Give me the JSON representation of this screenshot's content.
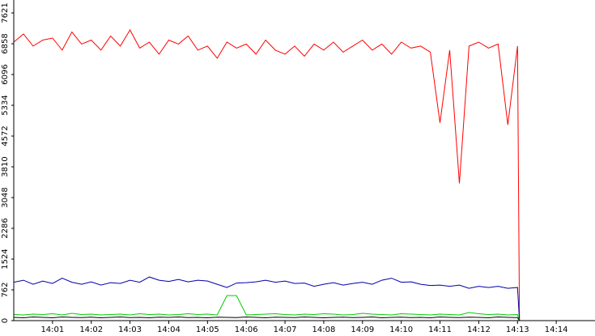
{
  "chart_data": {
    "type": "line",
    "x": [
      0,
      0.25,
      0.5,
      0.75,
      1,
      1.25,
      1.5,
      1.75,
      2,
      2.25,
      2.5,
      2.75,
      3,
      3.25,
      3.5,
      3.75,
      4,
      4.25,
      4.5,
      4.75,
      5,
      5.25,
      5.5,
      5.75,
      6,
      6.25,
      6.5,
      6.75,
      7,
      7.25,
      7.5,
      7.75,
      8,
      8.25,
      8.5,
      8.75,
      9,
      9.25,
      9.5,
      9.75,
      10,
      10.25,
      10.5,
      10.75,
      11,
      11.25,
      11.5,
      11.75,
      12,
      12.25,
      12.5,
      12.75,
      13,
      13.05
    ],
    "series": [
      {
        "color": "#ff0000",
        "values": [
          6900,
          7100,
          6800,
          6950,
          7000,
          6700,
          7150,
          6850,
          6950,
          6700,
          7050,
          6800,
          7200,
          6750,
          6900,
          6600,
          6950,
          6850,
          7050,
          6700,
          6800,
          6500,
          6900,
          6750,
          6850,
          6600,
          6950,
          6700,
          6600,
          6800,
          6550,
          6850,
          6700,
          6900,
          6650,
          6800,
          6950,
          6700,
          6850,
          6600,
          6900,
          6750,
          6800,
          6650,
          4900,
          6700,
          3400,
          6800,
          6900,
          6750,
          6850,
          4850,
          6800,
          0
        ]
      },
      {
        "color": "#0000aa",
        "values": [
          950,
          1000,
          900,
          980,
          920,
          1050,
          950,
          900,
          960,
          880,
          940,
          920,
          1000,
          950,
          1080,
          1000,
          970,
          1020,
          960,
          1000,
          980,
          900,
          820,
          930,
          940,
          960,
          1000,
          950,
          980,
          920,
          930,
          850,
          900,
          940,
          880,
          920,
          950,
          900,
          1000,
          1050,
          950,
          960,
          900,
          870,
          880,
          850,
          880,
          800,
          850,
          820,
          850,
          800,
          820,
          0
        ]
      },
      {
        "color": "#00cc00",
        "values": [
          150,
          140,
          160,
          150,
          170,
          140,
          180,
          150,
          160,
          140,
          150,
          160,
          140,
          170,
          150,
          160,
          140,
          150,
          170,
          150,
          160,
          140,
          620,
          620,
          140,
          150,
          160,
          170,
          150,
          140,
          160,
          150,
          170,
          160,
          140,
          150,
          180,
          160,
          150,
          140,
          170,
          160,
          150,
          140,
          160,
          150,
          140,
          200,
          170,
          150,
          160,
          140,
          150,
          0
        ]
      },
      {
        "color": "#000000",
        "values": [
          80,
          70,
          90,
          80,
          70,
          90,
          80,
          75,
          85,
          70,
          80,
          90,
          75,
          80,
          70,
          85,
          80,
          90,
          75,
          80,
          70,
          85,
          80,
          75,
          90,
          80,
          70,
          85,
          80,
          75,
          90,
          80,
          70,
          80,
          85,
          75,
          80,
          90,
          70,
          80,
          85,
          75,
          80,
          70,
          90,
          80,
          75,
          85,
          80,
          70,
          90,
          80,
          75,
          0
        ]
      }
    ],
    "xlim": [
      0,
      15
    ],
    "xticks": [
      {
        "value": 1,
        "label": "14:01"
      },
      {
        "value": 2,
        "label": "14:02"
      },
      {
        "value": 3,
        "label": "14:03"
      },
      {
        "value": 4,
        "label": "14:04"
      },
      {
        "value": 5,
        "label": "14:05"
      },
      {
        "value": 6,
        "label": "14:06"
      },
      {
        "value": 7,
        "label": "14:07"
      },
      {
        "value": 8,
        "label": "14:08"
      },
      {
        "value": 9,
        "label": "14:09"
      },
      {
        "value": 10,
        "label": "14:10"
      },
      {
        "value": 11,
        "label": "14:11"
      },
      {
        "value": 12,
        "label": "14:12"
      },
      {
        "value": 13,
        "label": "14:13"
      },
      {
        "value": 14,
        "label": "14:14"
      }
    ],
    "ylim": [
      0,
      7621
    ],
    "yticks": [
      0,
      762,
      1524,
      2286,
      3048,
      3810,
      4572,
      5334,
      6096,
      6858,
      7621
    ]
  }
}
